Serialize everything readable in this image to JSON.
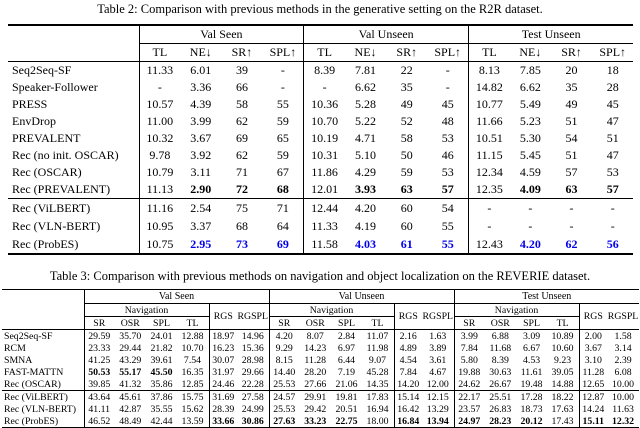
{
  "colors": {
    "highlight_blue": "#0000EE"
  },
  "table2": {
    "caption": "Table 2: Comparison with previous methods in the generative setting on the R2R dataset.",
    "groups": [
      "Val Seen",
      "Val Unseen",
      "Test Unseen"
    ],
    "subheaders": [
      "TL",
      "NE↓",
      "SR↑",
      "SPL↑"
    ],
    "sections": [
      {
        "rows": [
          {
            "method": "Seq2Seq-SF",
            "values": [
              "11.33",
              "6.01",
              "39",
              "-",
              "8.39",
              "7.81",
              "22",
              "-",
              "8.13",
              "7.85",
              "20",
              "18"
            ]
          },
          {
            "method": "Speaker-Follower",
            "values": [
              "-",
              "3.36",
              "66",
              "-",
              "-",
              "6.62",
              "35",
              "-",
              "14.82",
              "6.62",
              "35",
              "28"
            ]
          },
          {
            "method": "PRESS",
            "values": [
              "10.57",
              "4.39",
              "58",
              "55",
              "10.36",
              "5.28",
              "49",
              "45",
              "10.77",
              "5.49",
              "49",
              "45"
            ]
          },
          {
            "method": "EnvDrop",
            "values": [
              "11.00",
              "3.99",
              "62",
              "59",
              "10.70",
              "5.22",
              "52",
              "48",
              "11.66",
              "5.23",
              "51",
              "47"
            ]
          },
          {
            "method": "PREVALENT",
            "values": [
              "10.32",
              "3.67",
              "69",
              "65",
              "10.19",
              "4.71",
              "58",
              "53",
              "10.51",
              "5.30",
              "54",
              "51"
            ]
          },
          {
            "method": "Rec (no init. OSCAR)",
            "values": [
              "9.78",
              "3.92",
              "62",
              "59",
              "10.31",
              "5.10",
              "50",
              "46",
              "11.15",
              "5.45",
              "51",
              "47"
            ]
          },
          {
            "method": "Rec (OSCAR)",
            "values": [
              "10.79",
              "3.11",
              "71",
              "67",
              "11.86",
              "4.29",
              "59",
              "53",
              "12.34",
              "4.59",
              "57",
              "53"
            ]
          },
          {
            "method": "Rec (PREVALENT)",
            "values": [
              "11.13",
              "2.90",
              "72",
              "68",
              "12.01",
              "3.93",
              "63",
              "57",
              "12.35",
              "4.09",
              "63",
              "57"
            ],
            "bold": [
              1,
              2,
              3,
              5,
              6,
              7,
              9,
              10,
              11
            ]
          }
        ]
      },
      {
        "rows": [
          {
            "method": "Rec (ViLBERT)",
            "values": [
              "11.16",
              "2.54",
              "75",
              "71",
              "12.44",
              "4.20",
              "60",
              "54",
              "-",
              "-",
              "-",
              "-"
            ]
          },
          {
            "method": "Rec (VLN-BERT)",
            "values": [
              "10.95",
              "3.37",
              "68",
              "64",
              "11.33",
              "4.19",
              "60",
              "55",
              "-",
              "-",
              "-",
              "-"
            ]
          },
          {
            "method": "Rec (ProbES)",
            "values": [
              "10.75",
              "2.95",
              "73",
              "69",
              "11.58",
              "4.03",
              "61",
              "55",
              "12.43",
              "4.20",
              "62",
              "56"
            ],
            "blue": [
              1,
              2,
              3,
              5,
              6,
              7,
              9,
              10,
              11
            ]
          }
        ]
      }
    ]
  },
  "table3": {
    "caption": "Table 3: Comparison with previous methods on navigation and object localization on the REVERIE dataset.",
    "groups": [
      "Val Seen",
      "Val Unseen",
      "Test Unseen"
    ],
    "nav_label": "Navigation",
    "nav_subheaders": [
      "SR",
      "OSR",
      "SPL",
      "TL"
    ],
    "extra_headers": [
      "RGS",
      "RGSPL"
    ],
    "sections": [
      {
        "rows": [
          {
            "method": "Seq2Seq-SF",
            "values": [
              "29.59",
              "35.70",
              "24.01",
              "12.88",
              "18.97",
              "14.96",
              "4.20",
              "8.07",
              "2.84",
              "11.07",
              "2.16",
              "1.63",
              "3.99",
              "6.88",
              "3.09",
              "10.89",
              "2.00",
              "1.58"
            ]
          },
          {
            "method": "RCM",
            "values": [
              "23.33",
              "29.44",
              "21.82",
              "10.70",
              "16.23",
              "15.36",
              "9.29",
              "14.23",
              "6.97",
              "11.98",
              "4.89",
              "3.89",
              "7.84",
              "11.68",
              "6.67",
              "10.60",
              "3.67",
              "3.14"
            ]
          },
          {
            "method": "SMNA",
            "values": [
              "41.25",
              "43.29",
              "39.61",
              "7.54",
              "30.07",
              "28.98",
              "8.15",
              "11.28",
              "6.44",
              "9.07",
              "4.54",
              "3.61",
              "5.80",
              "8.39",
              "4.53",
              "9.23",
              "3.10",
              "2.39"
            ]
          },
          {
            "method": "FAST-MATTN",
            "values": [
              "50.53",
              "55.17",
              "45.50",
              "16.35",
              "31.97",
              "29.66",
              "14.40",
              "28.20",
              "7.19",
              "45.28",
              "7.84",
              "4.67",
              "19.88",
              "30.63",
              "11.61",
              "39.05",
              "11.28",
              "6.08"
            ],
            "bold": [
              0,
              1,
              2
            ]
          },
          {
            "method": "Rec (OSCAR)",
            "values": [
              "39.85",
              "41.32",
              "35.86",
              "12.85",
              "24.46",
              "22.28",
              "25.53",
              "27.66",
              "21.06",
              "14.35",
              "14.20",
              "12.00",
              "24.62",
              "26.67",
              "19.48",
              "14.88",
              "12.65",
              "10.00"
            ]
          }
        ]
      },
      {
        "rows": [
          {
            "method": "Rec (ViLBERT)",
            "values": [
              "43.64",
              "45.61",
              "37.86",
              "15.75",
              "31.69",
              "27.58",
              "24.57",
              "29.91",
              "19.81",
              "17.83",
              "15.14",
              "12.15",
              "22.17",
              "25.51",
              "17.28",
              "18.22",
              "12.87",
              "10.00"
            ]
          },
          {
            "method": "Rec (VLN-BERT)",
            "values": [
              "41.11",
              "42.87",
              "35.55",
              "15.62",
              "28.39",
              "24.99",
              "25.53",
              "29.42",
              "20.51",
              "16.94",
              "16.42",
              "13.29",
              "23.57",
              "26.83",
              "18.73",
              "17.63",
              "14.24",
              "11.63"
            ]
          },
          {
            "method": "Rec (ProbES)",
            "values": [
              "46.52",
              "48.49",
              "42.44",
              "13.59",
              "33.66",
              "30.86",
              "27.63",
              "33.23",
              "22.75",
              "18.00",
              "16.84",
              "13.94",
              "24.97",
              "28.23",
              "20.12",
              "17.43",
              "15.11",
              "12.32"
            ],
            "bold": [
              4,
              5,
              6,
              7,
              8,
              10,
              11,
              12,
              13,
              14,
              16,
              17
            ]
          }
        ]
      }
    ]
  }
}
